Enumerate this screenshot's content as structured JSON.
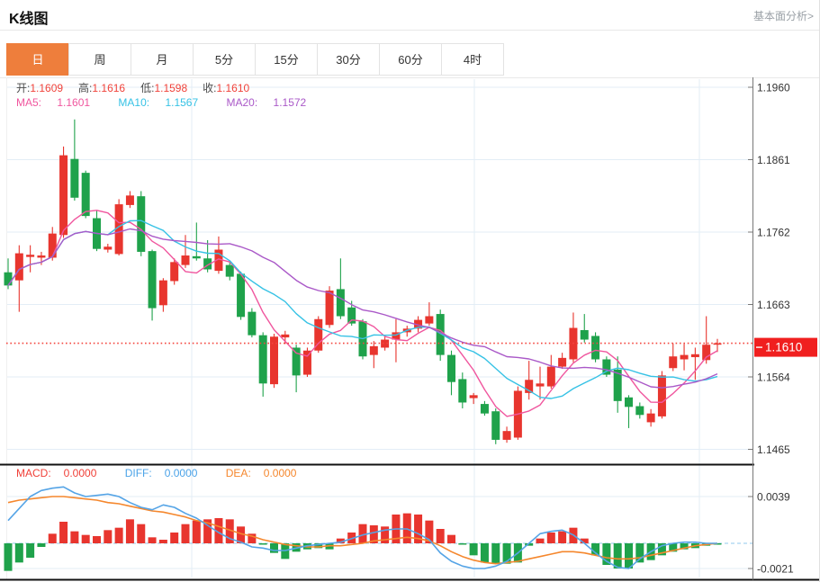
{
  "header": {
    "title": "K线图",
    "link_label": "基本面分析>"
  },
  "tabs": {
    "items": [
      "日",
      "周",
      "月",
      "5分",
      "15分",
      "30分",
      "60分",
      "4时"
    ],
    "selected": "日",
    "selected_color": "#ee7e3c"
  },
  "ohlc_legend": {
    "open_label": "开:",
    "open": "1.1609",
    "high_label": "高:",
    "high": "1.1616",
    "low_label": "低:",
    "low": "1.1598",
    "close_label": "收:",
    "close": "1.1610",
    "value_color": "#f0423a"
  },
  "ma_legend": [
    {
      "label": "MA5:",
      "value": "1.1601",
      "color": "#f0569e"
    },
    {
      "label": "MA10:",
      "value": "1.1567",
      "color": "#36c2e5"
    },
    {
      "label": "MA20:",
      "value": "1.1572",
      "color": "#aa59c8"
    }
  ],
  "macd_legend": [
    {
      "label": "MACD:",
      "value": "0.0000",
      "color": "#f04038"
    },
    {
      "label": "DIFF:",
      "value": "0.0000",
      "color": "#4ba3e8"
    },
    {
      "label": "DEA:",
      "value": "0.0000",
      "color": "#f5872d"
    }
  ],
  "colors": {
    "up_candle": "#e8352e",
    "down_candle": "#1fa24b",
    "ma5": "#f0569e",
    "ma10": "#36c2e5",
    "ma20": "#aa59c8",
    "diff_line": "#55a4e6",
    "dea_line": "#f5872d",
    "grid": "#e3edf6",
    "axis_line": "#777777",
    "axis_text": "#333333",
    "price_dotted_line": "#f4463f",
    "price_label_bg": "#f01f1f",
    "zero_dash": "#a6d3f0",
    "separator": "#111111"
  },
  "chart_data": [
    {
      "type": "candlestick",
      "panel": "main",
      "y_ticks": [
        "1.1960",
        "1.1861",
        "1.1762",
        "1.1663",
        "1.1564",
        "1.1465"
      ],
      "y_range": [
        1.1465,
        1.196
      ],
      "grid": true,
      "current_price": 1.161,
      "current_price_label": "1.1610",
      "ma_overlays": [
        {
          "period": 5,
          "color": "#f0569e"
        },
        {
          "period": 10,
          "color": "#36c2e5"
        },
        {
          "period": 20,
          "color": "#aa59c8"
        }
      ],
      "candles_format": [
        "open",
        "high",
        "low",
        "close"
      ],
      "candles": [
        [
          1.1707,
          1.1726,
          1.1684,
          1.1689
        ],
        [
          1.1696,
          1.1744,
          1.1653,
          1.1733
        ],
        [
          1.1728,
          1.1744,
          1.1707,
          1.1731
        ],
        [
          1.1727,
          1.1735,
          1.1717,
          1.173
        ],
        [
          1.1727,
          1.1769,
          1.1723,
          1.176
        ],
        [
          1.1758,
          1.1879,
          1.1754,
          1.1867
        ],
        [
          1.1862,
          1.1916,
          1.1805,
          1.1809
        ],
        [
          1.1843,
          1.1846,
          1.1781,
          1.1784
        ],
        [
          1.1781,
          1.1791,
          1.1736,
          1.1739
        ],
        [
          1.1738,
          1.1746,
          1.1734,
          1.1742
        ],
        [
          1.1732,
          1.1807,
          1.173,
          1.18
        ],
        [
          1.1799,
          1.1818,
          1.1795,
          1.1812
        ],
        [
          1.1811,
          1.1818,
          1.1729,
          1.1735
        ],
        [
          1.1736,
          1.1738,
          1.1641,
          1.1658
        ],
        [
          1.1662,
          1.1699,
          1.1653,
          1.1696
        ],
        [
          1.1695,
          1.1726,
          1.169,
          1.1721
        ],
        [
          1.1717,
          1.1758,
          1.1713,
          1.173
        ],
        [
          1.1729,
          1.1775,
          1.1723,
          1.1726
        ],
        [
          1.1726,
          1.1751,
          1.1707,
          1.1711
        ],
        [
          1.1709,
          1.1756,
          1.1705,
          1.1738
        ],
        [
          1.1717,
          1.1723,
          1.1696,
          1.1701
        ],
        [
          1.1705,
          1.1708,
          1.1642,
          1.1646
        ],
        [
          1.1653,
          1.1658,
          1.1618,
          1.1621
        ],
        [
          1.1621,
          1.1625,
          1.1537,
          1.1555
        ],
        [
          1.1554,
          1.1623,
          1.1549,
          1.1619
        ],
        [
          1.1618,
          1.1627,
          1.1609,
          1.1622
        ],
        [
          1.1604,
          1.1608,
          1.1543,
          1.1566
        ],
        [
          1.1567,
          1.1604,
          1.1564,
          1.16
        ],
        [
          1.16,
          1.1647,
          1.1597,
          1.1643
        ],
        [
          1.1635,
          1.1688,
          1.1631,
          1.1682
        ],
        [
          1.1684,
          1.1726,
          1.1643,
          1.1647
        ],
        [
          1.1659,
          1.1668,
          1.1634,
          1.1637
        ],
        [
          1.164,
          1.1643,
          1.1588,
          1.1592
        ],
        [
          1.1594,
          1.1613,
          1.1576,
          1.1606
        ],
        [
          1.1604,
          1.162,
          1.16,
          1.1615
        ],
        [
          1.1615,
          1.1643,
          1.1584,
          1.1625
        ],
        [
          1.1625,
          1.1634,
          1.1619,
          1.163
        ],
        [
          1.163,
          1.1647,
          1.1625,
          1.1642
        ],
        [
          1.1637,
          1.1666,
          1.1634,
          1.1647
        ],
        [
          1.165,
          1.1656,
          1.1586,
          1.1594
        ],
        [
          1.1594,
          1.16,
          1.1539,
          1.1557
        ],
        [
          1.1561,
          1.157,
          1.1521,
          1.1529
        ],
        [
          1.1535,
          1.1542,
          1.1527,
          1.1539
        ],
        [
          1.1527,
          1.1531,
          1.1511,
          1.1514
        ],
        [
          1.1517,
          1.1521,
          1.1472,
          1.1478
        ],
        [
          1.1478,
          1.1496,
          1.1474,
          1.149
        ],
        [
          1.1481,
          1.1551,
          1.1478,
          1.1545
        ],
        [
          1.1542,
          1.1586,
          1.1533,
          1.156
        ],
        [
          1.1551,
          1.1578,
          1.1533,
          1.1555
        ],
        [
          1.1551,
          1.1594,
          1.1548,
          1.1578
        ],
        [
          1.1578,
          1.1597,
          1.1575,
          1.159
        ],
        [
          1.1588,
          1.1652,
          1.1584,
          1.1631
        ],
        [
          1.1628,
          1.165,
          1.1611,
          1.1615
        ],
        [
          1.162,
          1.1625,
          1.1584,
          1.1588
        ],
        [
          1.1588,
          1.1592,
          1.1564,
          1.1567
        ],
        [
          1.1574,
          1.1592,
          1.1515,
          1.1531
        ],
        [
          1.1536,
          1.1539,
          1.1494,
          1.1523
        ],
        [
          1.1524,
          1.1529,
          1.1507,
          1.1512
        ],
        [
          1.1502,
          1.152,
          1.1496,
          1.1514
        ],
        [
          1.151,
          1.1572,
          1.1507,
          1.1566
        ],
        [
          1.1576,
          1.161,
          1.1572,
          1.1592
        ],
        [
          1.1588,
          1.1609,
          1.1573,
          1.1594
        ],
        [
          1.1591,
          1.1604,
          1.156,
          1.1595
        ],
        [
          1.1587,
          1.1647,
          1.1582,
          1.1608
        ],
        [
          1.1609,
          1.1616,
          1.1598,
          1.161
        ]
      ]
    },
    {
      "type": "bar",
      "panel": "macd",
      "y_ticks": [
        "0.0039",
        "-0.0021"
      ],
      "y_tick_values": [
        0.0039,
        -0.0021
      ],
      "grid": true,
      "series": [
        {
          "name": "MACD",
          "kind": "histogram",
          "values": [
            -0.0023,
            -0.0016,
            -0.0012,
            -0.0003,
            0.0008,
            0.0018,
            0.001,
            0.0007,
            0.0006,
            0.0011,
            0.0013,
            0.002,
            0.0016,
            0.0005,
            0.0003,
            0.0009,
            0.0016,
            0.0019,
            0.002,
            0.0021,
            0.002,
            0.0014,
            0.0008,
            -0.0001,
            -0.0008,
            -0.0013,
            -0.0007,
            -0.0005,
            -0.0004,
            -0.0005,
            0.0004,
            0.0009,
            0.0016,
            0.0015,
            0.0014,
            0.0024,
            0.0025,
            0.0024,
            0.0019,
            0.0012,
            0.0007,
            -0.0001,
            -0.001,
            -0.0016,
            -0.0017,
            -0.0017,
            -0.0016,
            -0.0002,
            0.0004,
            0.0009,
            0.001,
            0.0013,
            0.0004,
            -0.001,
            -0.0018,
            -0.0021,
            -0.0021,
            -0.0016,
            -0.0014,
            -0.001,
            -0.0007,
            -0.0005,
            -0.0004,
            -0.0002,
            -0.0001
          ]
        },
        {
          "name": "DIFF",
          "kind": "line",
          "color": "#55a4e6",
          "values": [
            0.0019,
            0.0029,
            0.0039,
            0.0044,
            0.0046,
            0.0047,
            0.0042,
            0.0039,
            0.004,
            0.0041,
            0.0039,
            0.0034,
            0.003,
            0.0028,
            0.0032,
            0.003,
            0.0025,
            0.0021,
            0.0015,
            0.0009,
            0.0004,
            0.0001,
            -0.0003,
            -0.0004,
            -0.0006,
            -0.0006,
            -0.0004,
            -0.0002,
            -0.0001,
            0.0,
            0.0001,
            0.0004,
            0.0007,
            0.0009,
            0.0011,
            0.0012,
            0.0012,
            0.0008,
            0.0003,
            -0.0008,
            -0.0015,
            -0.0019,
            -0.0021,
            -0.0021,
            -0.0019,
            -0.0015,
            -0.0008,
            0.0,
            0.0008,
            0.001,
            0.0011,
            0.0007,
            0.0,
            -0.0008,
            -0.0015,
            -0.002,
            -0.0021,
            -0.0013,
            -0.0007,
            -0.0002,
            0.0,
            0.0001,
            0.0001,
            0.0,
            0.0
          ]
        },
        {
          "name": "DEA",
          "kind": "line",
          "color": "#f5872d",
          "values": [
            0.0034,
            0.0036,
            0.0037,
            0.0038,
            0.0039,
            0.0039,
            0.0038,
            0.0037,
            0.0036,
            0.0034,
            0.0033,
            0.0031,
            0.0029,
            0.0027,
            0.0026,
            0.0024,
            0.0022,
            0.0019,
            0.0017,
            0.0014,
            0.0011,
            0.0008,
            0.0006,
            0.0003,
            0.0001,
            -0.0001,
            -0.0002,
            -0.0003,
            -0.0003,
            -0.0002,
            -0.0002,
            -0.0001,
            0.0,
            0.0002,
            0.0003,
            0.0004,
            0.0005,
            0.0004,
            0.0002,
            -0.0002,
            -0.0007,
            -0.0011,
            -0.0014,
            -0.0016,
            -0.0017,
            -0.0016,
            -0.0015,
            -0.0013,
            -0.0011,
            -0.0009,
            -0.0007,
            -0.0007,
            -0.0008,
            -0.001,
            -0.0012,
            -0.0013,
            -0.0013,
            -0.0012,
            -0.001,
            -0.0008,
            -0.0006,
            -0.0004,
            -0.0002,
            -0.0001,
            0.0
          ]
        }
      ]
    }
  ]
}
